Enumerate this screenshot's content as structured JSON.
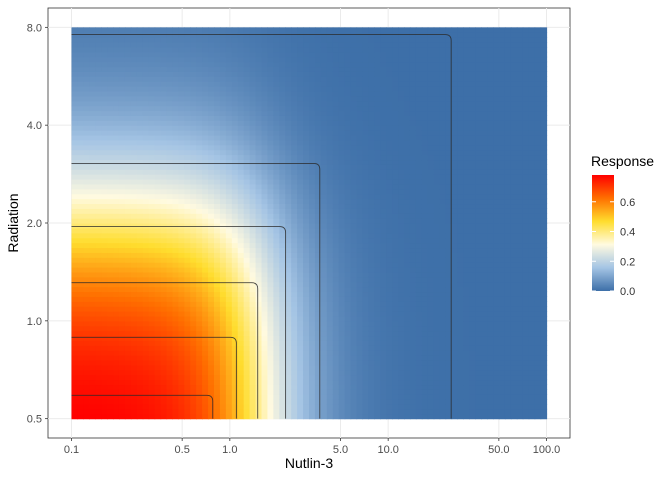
{
  "chart_data": {
    "type": "heatmap",
    "title": "",
    "xlabel": "Nutlin-3",
    "ylabel": "Radiation",
    "x_scale": "log",
    "y_scale": "log",
    "xlim": [
      0.1,
      100
    ],
    "ylim": [
      0.5,
      8
    ],
    "x_ticks": [
      0.1,
      0.5,
      1,
      5,
      10,
      50,
      100
    ],
    "x_tick_labels": [
      "0.1",
      "0.5",
      "1.0",
      "5.0",
      "10.0",
      "50.0",
      "100.0"
    ],
    "y_ticks": [
      0.5,
      1,
      2,
      4,
      8
    ],
    "y_tick_labels": [
      "0.5",
      "1.0",
      "2.0",
      "4.0",
      "8.0"
    ],
    "grid": true,
    "legend": {
      "title": "Response",
      "placement": "right",
      "ticks": [
        0.0,
        0.2,
        0.4,
        0.6
      ],
      "tick_labels": [
        "0.0",
        "0.2",
        "0.4",
        "0.6"
      ],
      "range": [
        0.0,
        0.78
      ],
      "colors": [
        "#3d6fa8",
        "#a4c4e4",
        "#fffae0",
        "#ffdd2e",
        "#ff6f00",
        "#ff0000"
      ]
    },
    "contours": [
      {
        "x_edge": 0.78,
        "y_edge": 0.59
      },
      {
        "x_edge": 1.1,
        "y_edge": 0.89
      },
      {
        "x_edge": 1.5,
        "y_edge": 1.31
      },
      {
        "x_edge": 2.25,
        "y_edge": 1.95
      },
      {
        "x_edge": 3.7,
        "y_edge": 3.05
      },
      {
        "x_edge": 25,
        "y_edge": 7.6
      }
    ],
    "samples": [
      {
        "nutlin": 0.1,
        "radiation": 0.5,
        "response": 0.78
      },
      {
        "nutlin": 0.1,
        "radiation": 1.0,
        "response": 0.55
      },
      {
        "nutlin": 0.1,
        "radiation": 2.0,
        "response": 0.38
      },
      {
        "nutlin": 0.1,
        "radiation": 4.0,
        "response": 0.12
      },
      {
        "nutlin": 0.1,
        "radiation": 8.0,
        "response": 0.0
      },
      {
        "nutlin": 1.0,
        "radiation": 0.5,
        "response": 0.58
      },
      {
        "nutlin": 2.0,
        "radiation": 0.5,
        "response": 0.36
      },
      {
        "nutlin": 5.0,
        "radiation": 0.5,
        "response": 0.15
      },
      {
        "nutlin": 10.0,
        "radiation": 0.5,
        "response": 0.08
      },
      {
        "nutlin": 100.0,
        "radiation": 0.5,
        "response": 0.0
      }
    ]
  }
}
